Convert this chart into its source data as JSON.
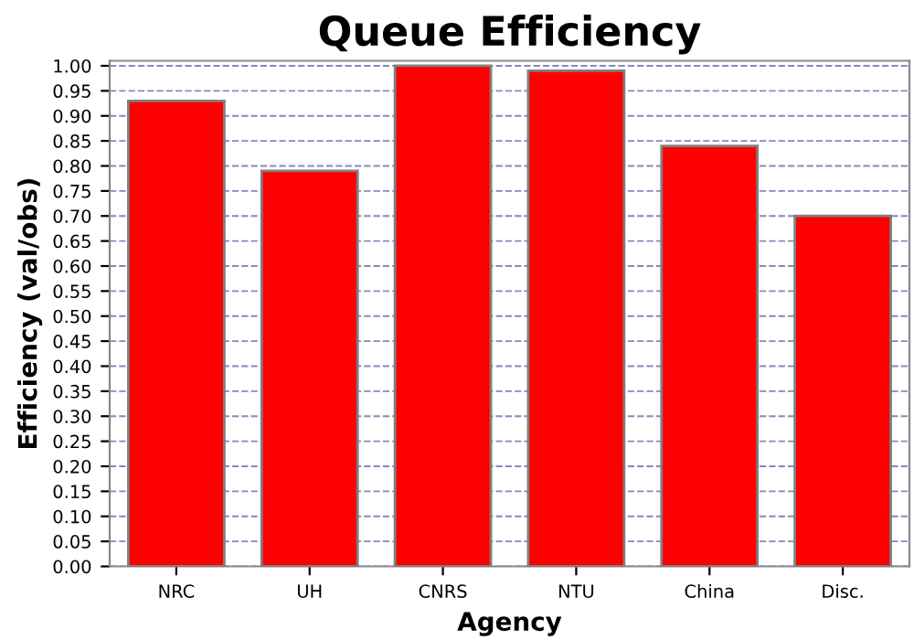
{
  "chart_data": {
    "type": "bar",
    "title": "Queue Efficiency",
    "xlabel": "Agency",
    "ylabel": "Efficiency (val/obs)",
    "categories": [
      "NRC",
      "UH",
      "CNRS",
      "NTU",
      "China",
      "Disc."
    ],
    "values": [
      0.93,
      0.79,
      1.0,
      0.99,
      0.84,
      0.7
    ],
    "color": "#ff0000",
    "ylim": [
      0,
      1.01
    ],
    "yticks": [
      {
        "value": 0,
        "label": "0.00"
      },
      {
        "value": 0.05,
        "label": "0.05"
      },
      {
        "value": 0.1,
        "label": "0.10"
      },
      {
        "value": 0.15,
        "label": "0.15"
      },
      {
        "value": 0.2,
        "label": "0.20"
      },
      {
        "value": 0.25,
        "label": "0.25"
      },
      {
        "value": 0.3,
        "label": "0.30"
      },
      {
        "value": 0.35,
        "label": "0.35"
      },
      {
        "value": 0.4,
        "label": "0.40"
      },
      {
        "value": 0.45,
        "label": "0.45"
      },
      {
        "value": 0.5,
        "label": "0.50"
      },
      {
        "value": 0.55,
        "label": "0.55"
      },
      {
        "value": 0.6,
        "label": "0.60"
      },
      {
        "value": 0.65,
        "label": "0.65"
      },
      {
        "value": 0.7,
        "label": "0.70"
      },
      {
        "value": 0.75,
        "label": "0.75"
      },
      {
        "value": 0.8,
        "label": "0.80"
      },
      {
        "value": 0.85,
        "label": "0.85"
      },
      {
        "value": 0.9,
        "label": "0.90"
      },
      {
        "value": 0.95,
        "label": "0.95"
      },
      {
        "value": 1,
        "label": "1.00"
      }
    ],
    "grid": "y"
  }
}
